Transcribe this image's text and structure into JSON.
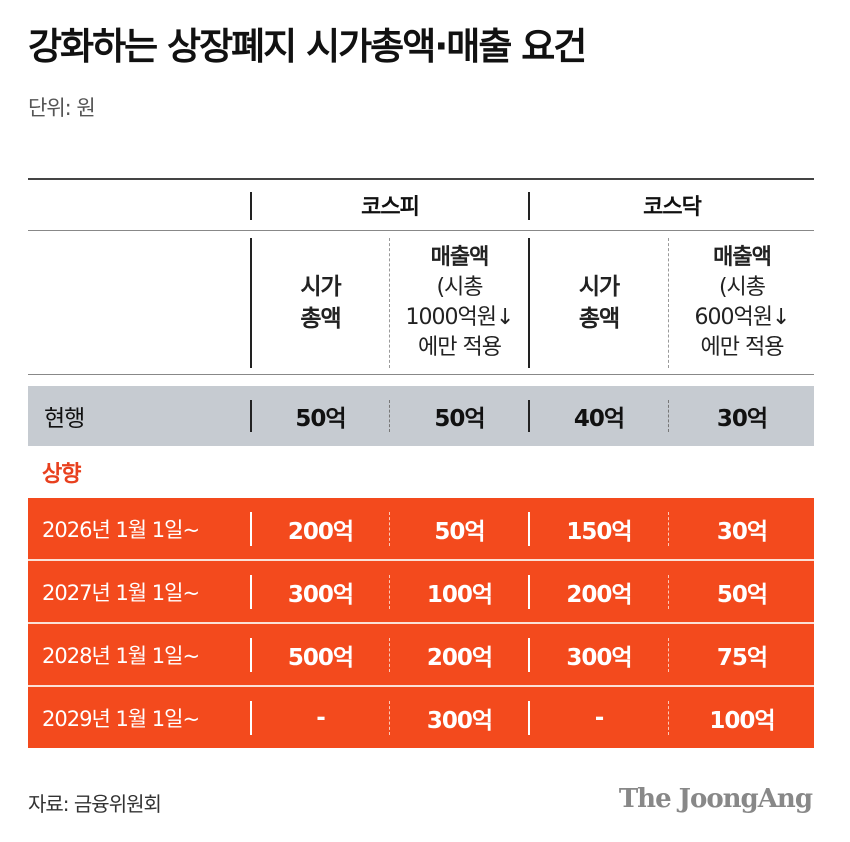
{
  "title": "강화하는 상장폐지 시가총액·매출 요건",
  "unit": "단위: 원",
  "groups": {
    "kospi": "코스피",
    "kosdaq": "코스닥"
  },
  "subheaders": {
    "kospi_cap": [
      "시가",
      "총액"
    ],
    "kospi_sales": [
      "매출액",
      "(시총",
      "1000억원↓",
      "에만 적용"
    ],
    "kosdaq_cap": [
      "시가",
      "총액"
    ],
    "kosdaq_sales": [
      "매출액",
      "(시총",
      "600억원↓",
      "에만 적용"
    ]
  },
  "current": {
    "label": "현행",
    "values": [
      "50억",
      "50억",
      "40억",
      "30억"
    ]
  },
  "upward_label": "상향",
  "rows": [
    {
      "label": "2026년 1월 1일~",
      "values": [
        "200억",
        "50억",
        "150억",
        "30억"
      ]
    },
    {
      "label": "2027년 1월 1일~",
      "values": [
        "300억",
        "100억",
        "200억",
        "50억"
      ]
    },
    {
      "label": "2028년 1월 1일~",
      "values": [
        "500억",
        "200억",
        "300억",
        "75억"
      ]
    },
    {
      "label": "2029년 1월 1일~",
      "values": [
        "-",
        "300억",
        "-",
        "100억"
      ]
    }
  ],
  "source": "자료: 금융위원회",
  "brand": "The JoongAng",
  "colors": {
    "accent": "#f34a1d",
    "current_row_bg": "#c6cbd1",
    "upward_label": "#e8401e"
  }
}
